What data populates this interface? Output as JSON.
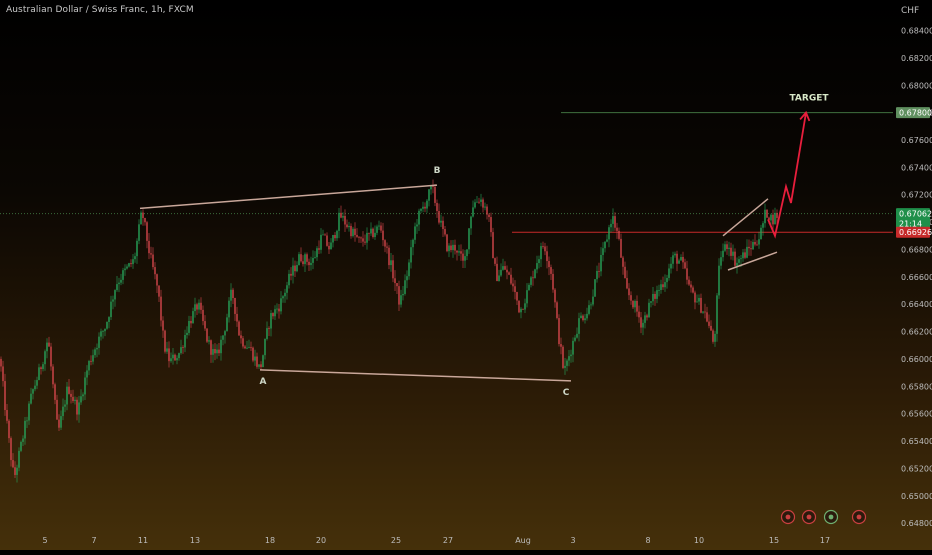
{
  "header": {
    "symbol_title": "Australian Dollar / Swiss Franc, 1h, FXCM",
    "currency": "CHF"
  },
  "colors": {
    "up_candle": "#26a65b",
    "down_candle": "#d8474d",
    "target_line": "#3f6f3f",
    "target_label_bg": "#5f8f5f",
    "current_price_bg": "#1f8f4a",
    "prev_price_bg": "#c62a2a",
    "prev_price_line": "#c62a2a",
    "pattern_lines": "#c9a79a",
    "arrow": "#e81e3c",
    "target_text": "#d8e8c8",
    "dotted_line": "#3a6b3a"
  },
  "chart_data": {
    "type": "candlestick",
    "instrument": "Australian Dollar / Swiss Franc",
    "timeframe": "1h",
    "source": "FXCM",
    "y_axis": {
      "unit": "CHF",
      "ylim": [
        0.6475,
        0.6855
      ],
      "ticks": [
        "0.68400",
        "0.68200",
        "0.68000",
        "0.67800",
        "0.67600",
        "0.67400",
        "0.67200",
        "0.67000",
        "0.66800",
        "0.66600",
        "0.66400",
        "0.66200",
        "0.66000",
        "0.65800",
        "0.65600",
        "0.65400",
        "0.65200",
        "0.65000",
        "0.64800"
      ]
    },
    "x_axis": {
      "ticks": [
        {
          "label": "5",
          "index": 45
        },
        {
          "label": "7",
          "index": 94
        },
        {
          "label": "11",
          "index": 143
        },
        {
          "label": "13",
          "index": 195
        },
        {
          "label": "18",
          "index": 270
        },
        {
          "label": "20",
          "index": 321
        },
        {
          "label": "25",
          "index": 396
        },
        {
          "label": "27",
          "index": 448
        },
        {
          "label": "Aug",
          "index": 523
        },
        {
          "label": "3",
          "index": 573
        },
        {
          "label": "8",
          "index": 648
        },
        {
          "label": "10",
          "index": 699
        },
        {
          "label": "15",
          "index": 774
        },
        {
          "label": "17",
          "index": 825
        }
      ]
    },
    "price_path": [
      [
        0,
        0.66
      ],
      [
        8,
        0.6545
      ],
      [
        14,
        0.6512
      ],
      [
        22,
        0.654
      ],
      [
        32,
        0.6575
      ],
      [
        40,
        0.6592
      ],
      [
        48,
        0.6615
      ],
      [
        58,
        0.6545
      ],
      [
        68,
        0.658
      ],
      [
        78,
        0.6562
      ],
      [
        88,
        0.6595
      ],
      [
        96,
        0.661
      ],
      [
        106,
        0.6625
      ],
      [
        116,
        0.6655
      ],
      [
        126,
        0.6665
      ],
      [
        134,
        0.6672
      ],
      [
        142,
        0.6708
      ],
      [
        150,
        0.6675
      ],
      [
        158,
        0.665
      ],
      [
        164,
        0.661
      ],
      [
        170,
        0.6598
      ],
      [
        180,
        0.6605
      ],
      [
        188,
        0.6625
      ],
      [
        198,
        0.664
      ],
      [
        208,
        0.6612
      ],
      [
        216,
        0.66
      ],
      [
        224,
        0.662
      ],
      [
        232,
        0.665
      ],
      [
        240,
        0.6615
      ],
      [
        250,
        0.6608
      ],
      [
        260,
        0.6592
      ],
      [
        270,
        0.663
      ],
      [
        280,
        0.664
      ],
      [
        290,
        0.666
      ],
      [
        300,
        0.6675
      ],
      [
        312,
        0.667
      ],
      [
        322,
        0.669
      ],
      [
        330,
        0.668
      ],
      [
        340,
        0.6705
      ],
      [
        350,
        0.6695
      ],
      [
        360,
        0.6685
      ],
      [
        370,
        0.669
      ],
      [
        380,
        0.6697
      ],
      [
        392,
        0.6665
      ],
      [
        400,
        0.664
      ],
      [
        408,
        0.6665
      ],
      [
        416,
        0.67
      ],
      [
        424,
        0.6712
      ],
      [
        432,
        0.6725
      ],
      [
        440,
        0.67
      ],
      [
        448,
        0.668
      ],
      [
        456,
        0.6682
      ],
      [
        464,
        0.6668
      ],
      [
        472,
        0.6712
      ],
      [
        480,
        0.6718
      ],
      [
        488,
        0.6706
      ],
      [
        496,
        0.666
      ],
      [
        504,
        0.6667
      ],
      [
        512,
        0.6655
      ],
      [
        520,
        0.6635
      ],
      [
        528,
        0.665
      ],
      [
        536,
        0.667
      ],
      [
        544,
        0.6685
      ],
      [
        552,
        0.666
      ],
      [
        558,
        0.662
      ],
      [
        564,
        0.659
      ],
      [
        572,
        0.661
      ],
      [
        580,
        0.663
      ],
      [
        588,
        0.6635
      ],
      [
        596,
        0.6658
      ],
      [
        604,
        0.668
      ],
      [
        612,
        0.6705
      ],
      [
        618,
        0.669
      ],
      [
        626,
        0.665
      ],
      [
        634,
        0.664
      ],
      [
        642,
        0.6625
      ],
      [
        650,
        0.664
      ],
      [
        658,
        0.665
      ],
      [
        666,
        0.666
      ],
      [
        674,
        0.6675
      ],
      [
        682,
        0.667
      ],
      [
        690,
        0.665
      ],
      [
        698,
        0.6642
      ],
      [
        706,
        0.6632
      ],
      [
        714,
        0.661
      ],
      [
        720,
        0.6675
      ],
      [
        728,
        0.6685
      ],
      [
        736,
        0.667
      ],
      [
        744,
        0.6676
      ],
      [
        752,
        0.6683
      ],
      [
        760,
        0.669
      ],
      [
        766,
        0.6708
      ],
      [
        772,
        0.6702
      ],
      [
        778,
        0.6706
      ]
    ],
    "annotations": {
      "points": [
        {
          "label": "B",
          "index": 437,
          "price": 0.6727
        },
        {
          "label": "A",
          "index": 263,
          "price": 0.6592
        },
        {
          "label": "C",
          "index": 566,
          "price": 0.6584
        }
      ],
      "upper_line": [
        [
          140,
          0.671
        ],
        [
          437,
          0.6727
        ]
      ],
      "lower_line": [
        [
          260,
          0.6592
        ],
        [
          571,
          0.6584
        ]
      ],
      "channel_upper": [
        [
          723,
          0.669
        ],
        [
          768,
          0.6717
        ]
      ],
      "channel_lower": [
        [
          728,
          0.6665
        ],
        [
          777,
          0.6678
        ]
      ],
      "projection_arrow": [
        [
          768,
          0.6702
        ],
        [
          775,
          0.669
        ],
        [
          786,
          0.6726
        ],
        [
          791,
          0.6714
        ],
        [
          806,
          0.678
        ]
      ],
      "target_label": "TARGET",
      "target_price": 0.678
    },
    "price_labels": {
      "target": "0.67800",
      "current": "0.67062",
      "countdown": "21:14",
      "previous": "0.66926"
    },
    "horizontal_lines": {
      "target": 0.678,
      "current": 0.67062,
      "previous": 0.66926,
      "previous_line_start_index": 512
    }
  }
}
